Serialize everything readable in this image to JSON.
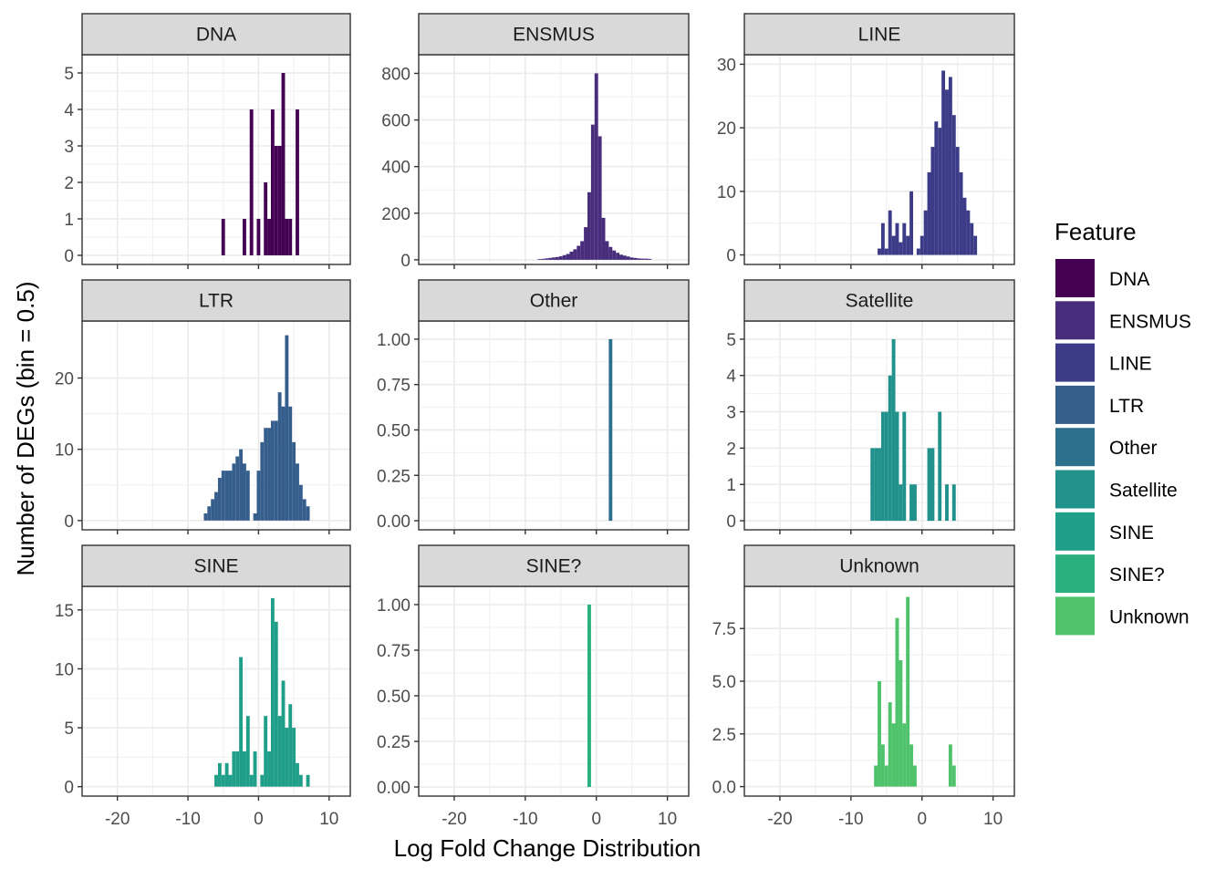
{
  "chart_data": {
    "type": "bar",
    "facet_type": "histogram",
    "xlabel": "Log Fold Change Distribution",
    "ylabel": "Number of DEGs (bin = 0.5)",
    "xlim": [
      -25,
      13
    ],
    "x_ticks": [
      -20,
      -10,
      0,
      10
    ],
    "x_tick_labels": [
      "-20",
      "-10",
      "0",
      "10"
    ],
    "grid": true,
    "legend": {
      "title": "Feature",
      "placement": "right",
      "entries": [
        {
          "label": "DNA",
          "color": "#440154"
        },
        {
          "label": "ENSMUS",
          "color": "#472D7B"
        },
        {
          "label": "LINE",
          "color": "#3B3B87"
        },
        {
          "label": "LTR",
          "color": "#355E8D"
        },
        {
          "label": "Other",
          "color": "#2C708E"
        },
        {
          "label": "Satellite",
          "color": "#21918C"
        },
        {
          "label": "SINE",
          "color": "#1F9E89"
        },
        {
          "label": "SINE?",
          "color": "#2AB07F"
        },
        {
          "label": "Unknown",
          "color": "#4EC36B"
        }
      ]
    },
    "panels": [
      {
        "title": "DNA",
        "color": "#440154",
        "ylim": [
          -0.25,
          5.5
        ],
        "y_ticks": [
          0,
          1,
          2,
          3,
          4,
          5
        ],
        "y_tick_labels": [
          "0",
          "1",
          "2",
          "3",
          "4",
          "5"
        ],
        "bin_width": 0.5,
        "bins": [
          [
            -5,
            1
          ],
          [
            -2,
            1
          ],
          [
            -1,
            4
          ],
          [
            0,
            1
          ],
          [
            1,
            2
          ],
          [
            1.5,
            1
          ],
          [
            2,
            4
          ],
          [
            2.5,
            3
          ],
          [
            3,
            3
          ],
          [
            3.5,
            5
          ],
          [
            4,
            1
          ],
          [
            4.5,
            1
          ],
          [
            5.5,
            4
          ]
        ]
      },
      {
        "title": "ENSMUS",
        "color": "#472D7B",
        "ylim": [
          -20,
          880
        ],
        "y_ticks": [
          0,
          200,
          400,
          600,
          800
        ],
        "y_tick_labels": [
          "0",
          "200",
          "400",
          "600",
          "800"
        ],
        "bin_width": 0.5,
        "bins": [
          [
            -8,
            3
          ],
          [
            -7.5,
            4
          ],
          [
            -7,
            6
          ],
          [
            -6.5,
            8
          ],
          [
            -6,
            10
          ],
          [
            -5.5,
            12
          ],
          [
            -5,
            15
          ],
          [
            -4.5,
            20
          ],
          [
            -4,
            25
          ],
          [
            -3.5,
            35
          ],
          [
            -3,
            45
          ],
          [
            -2.5,
            60
          ],
          [
            -2,
            80
          ],
          [
            -1.5,
            140
          ],
          [
            -1,
            290
          ],
          [
            -0.5,
            580
          ],
          [
            0,
            800
          ],
          [
            0.5,
            530
          ],
          [
            1,
            180
          ],
          [
            1.5,
            80
          ],
          [
            2,
            55
          ],
          [
            2.5,
            40
          ],
          [
            3,
            30
          ],
          [
            3.5,
            22
          ],
          [
            4,
            18
          ],
          [
            4.5,
            14
          ],
          [
            5,
            10
          ],
          [
            5.5,
            8
          ],
          [
            6,
            6
          ],
          [
            6.5,
            5
          ],
          [
            7,
            5
          ],
          [
            7.5,
            4
          ]
        ]
      },
      {
        "title": "LINE",
        "color": "#3B3B87",
        "ylim": [
          -1.5,
          31.5
        ],
        "y_ticks": [
          0,
          10,
          20,
          30
        ],
        "y_tick_labels": [
          "0",
          "10",
          "20",
          "30"
        ],
        "bin_width": 0.5,
        "bins": [
          [
            -6,
            1
          ],
          [
            -5.5,
            5
          ],
          [
            -5,
            1
          ],
          [
            -4.5,
            7
          ],
          [
            -4,
            3
          ],
          [
            -3.5,
            5
          ],
          [
            -3,
            2
          ],
          [
            -2.5,
            5
          ],
          [
            -2,
            3
          ],
          [
            -1.5,
            10
          ],
          [
            -0.5,
            1
          ],
          [
            0,
            3
          ],
          [
            0.5,
            7
          ],
          [
            1,
            13
          ],
          [
            1.5,
            17
          ],
          [
            2,
            21
          ],
          [
            2.5,
            20
          ],
          [
            3,
            29
          ],
          [
            3.5,
            26
          ],
          [
            4,
            28
          ],
          [
            4.5,
            22
          ],
          [
            5,
            17
          ],
          [
            5.5,
            13
          ],
          [
            6,
            9
          ],
          [
            6.5,
            7
          ],
          [
            7,
            5
          ],
          [
            7.5,
            3
          ]
        ]
      },
      {
        "title": "LTR",
        "color": "#355E8D",
        "ylim": [
          -1.3,
          28
        ],
        "y_ticks": [
          0,
          10,
          20
        ],
        "y_tick_labels": [
          "0",
          "10",
          "20"
        ],
        "bin_width": 0.5,
        "bins": [
          [
            -7.5,
            1
          ],
          [
            -7,
            2
          ],
          [
            -6.5,
            3
          ],
          [
            -6,
            4
          ],
          [
            -5.5,
            6
          ],
          [
            -5,
            7
          ],
          [
            -4.5,
            7
          ],
          [
            -4,
            7
          ],
          [
            -3.5,
            8
          ],
          [
            -3,
            9
          ],
          [
            -2.5,
            10
          ],
          [
            -2,
            8
          ],
          [
            -1.5,
            7
          ],
          [
            -0.5,
            1
          ],
          [
            0,
            7
          ],
          [
            0.5,
            11
          ],
          [
            1,
            13
          ],
          [
            1.5,
            13
          ],
          [
            2,
            14
          ],
          [
            2.5,
            14
          ],
          [
            3,
            18
          ],
          [
            3.5,
            16
          ],
          [
            4,
            26
          ],
          [
            4.5,
            16
          ],
          [
            5,
            11
          ],
          [
            5.5,
            8
          ],
          [
            6,
            5
          ],
          [
            6.5,
            3
          ],
          [
            7,
            2
          ]
        ]
      },
      {
        "title": "Other",
        "color": "#2C708E",
        "ylim": [
          -0.05,
          1.1
        ],
        "y_ticks": [
          0,
          0.25,
          0.5,
          0.75,
          1
        ],
        "y_tick_labels": [
          "0.00",
          "0.25",
          "0.50",
          "0.75",
          "1.00"
        ],
        "bin_width": 0.5,
        "bins": [
          [
            2,
            1
          ]
        ]
      },
      {
        "title": "Satellite",
        "color": "#21918C",
        "ylim": [
          -0.25,
          5.5
        ],
        "y_ticks": [
          0,
          1,
          2,
          3,
          4,
          5
        ],
        "y_tick_labels": [
          "0",
          "1",
          "2",
          "3",
          "4",
          "5"
        ],
        "bin_width": 0.5,
        "bins": [
          [
            -7,
            2
          ],
          [
            -6.5,
            2
          ],
          [
            -6,
            2
          ],
          [
            -5.5,
            3
          ],
          [
            -5,
            3
          ],
          [
            -4.5,
            4
          ],
          [
            -4,
            5
          ],
          [
            -3.5,
            3
          ],
          [
            -3,
            1
          ],
          [
            -2.5,
            3
          ],
          [
            -1.5,
            1
          ],
          [
            -1,
            1
          ],
          [
            1,
            2
          ],
          [
            1.5,
            2
          ],
          [
            2.5,
            3
          ],
          [
            3.5,
            1
          ],
          [
            4.5,
            1
          ]
        ]
      },
      {
        "title": "SINE",
        "color": "#1F9E89",
        "ylim": [
          -0.8,
          17
        ],
        "y_ticks": [
          0,
          5,
          10,
          15
        ],
        "y_tick_labels": [
          "0",
          "5",
          "10",
          "15"
        ],
        "bin_width": 0.5,
        "bins": [
          [
            -6,
            1
          ],
          [
            -5.5,
            2
          ],
          [
            -5,
            1
          ],
          [
            -4.5,
            2
          ],
          [
            -4,
            1
          ],
          [
            -3.5,
            3
          ],
          [
            -3,
            3
          ],
          [
            -2.5,
            11
          ],
          [
            -2,
            3
          ],
          [
            -1.5,
            6
          ],
          [
            -1,
            1
          ],
          [
            -0.5,
            3
          ],
          [
            0.5,
            1
          ],
          [
            1,
            6
          ],
          [
            1.5,
            3
          ],
          [
            2,
            16
          ],
          [
            2.5,
            14
          ],
          [
            3,
            6
          ],
          [
            3.5,
            9
          ],
          [
            4,
            5
          ],
          [
            4.5,
            7
          ],
          [
            5,
            5
          ],
          [
            5.5,
            2
          ],
          [
            6,
            1
          ],
          [
            7,
            1
          ]
        ]
      },
      {
        "title": "SINE?",
        "color": "#2AB07F",
        "ylim": [
          -0.05,
          1.1
        ],
        "y_ticks": [
          0,
          0.25,
          0.5,
          0.75,
          1
        ],
        "y_tick_labels": [
          "0.00",
          "0.25",
          "0.50",
          "0.75",
          "1.00"
        ],
        "bin_width": 0.5,
        "bins": [
          [
            -1,
            1
          ]
        ]
      },
      {
        "title": "Unknown",
        "color": "#4EC36B",
        "ylim": [
          -0.45,
          9.5
        ],
        "y_ticks": [
          0,
          2.5,
          5,
          7.5
        ],
        "y_tick_labels": [
          "0.0",
          "2.5",
          "5.0",
          "7.5"
        ],
        "bin_width": 0.5,
        "bins": [
          [
            -6.5,
            1
          ],
          [
            -6,
            5
          ],
          [
            -5.5,
            2
          ],
          [
            -5,
            1
          ],
          [
            -4.5,
            4
          ],
          [
            -4,
            3
          ],
          [
            -3.5,
            8
          ],
          [
            -3,
            6
          ],
          [
            -2.5,
            3
          ],
          [
            -2,
            9
          ],
          [
            -1.5,
            2
          ],
          [
            -1,
            1
          ],
          [
            4,
            2
          ],
          [
            4.5,
            1
          ]
        ]
      }
    ]
  }
}
